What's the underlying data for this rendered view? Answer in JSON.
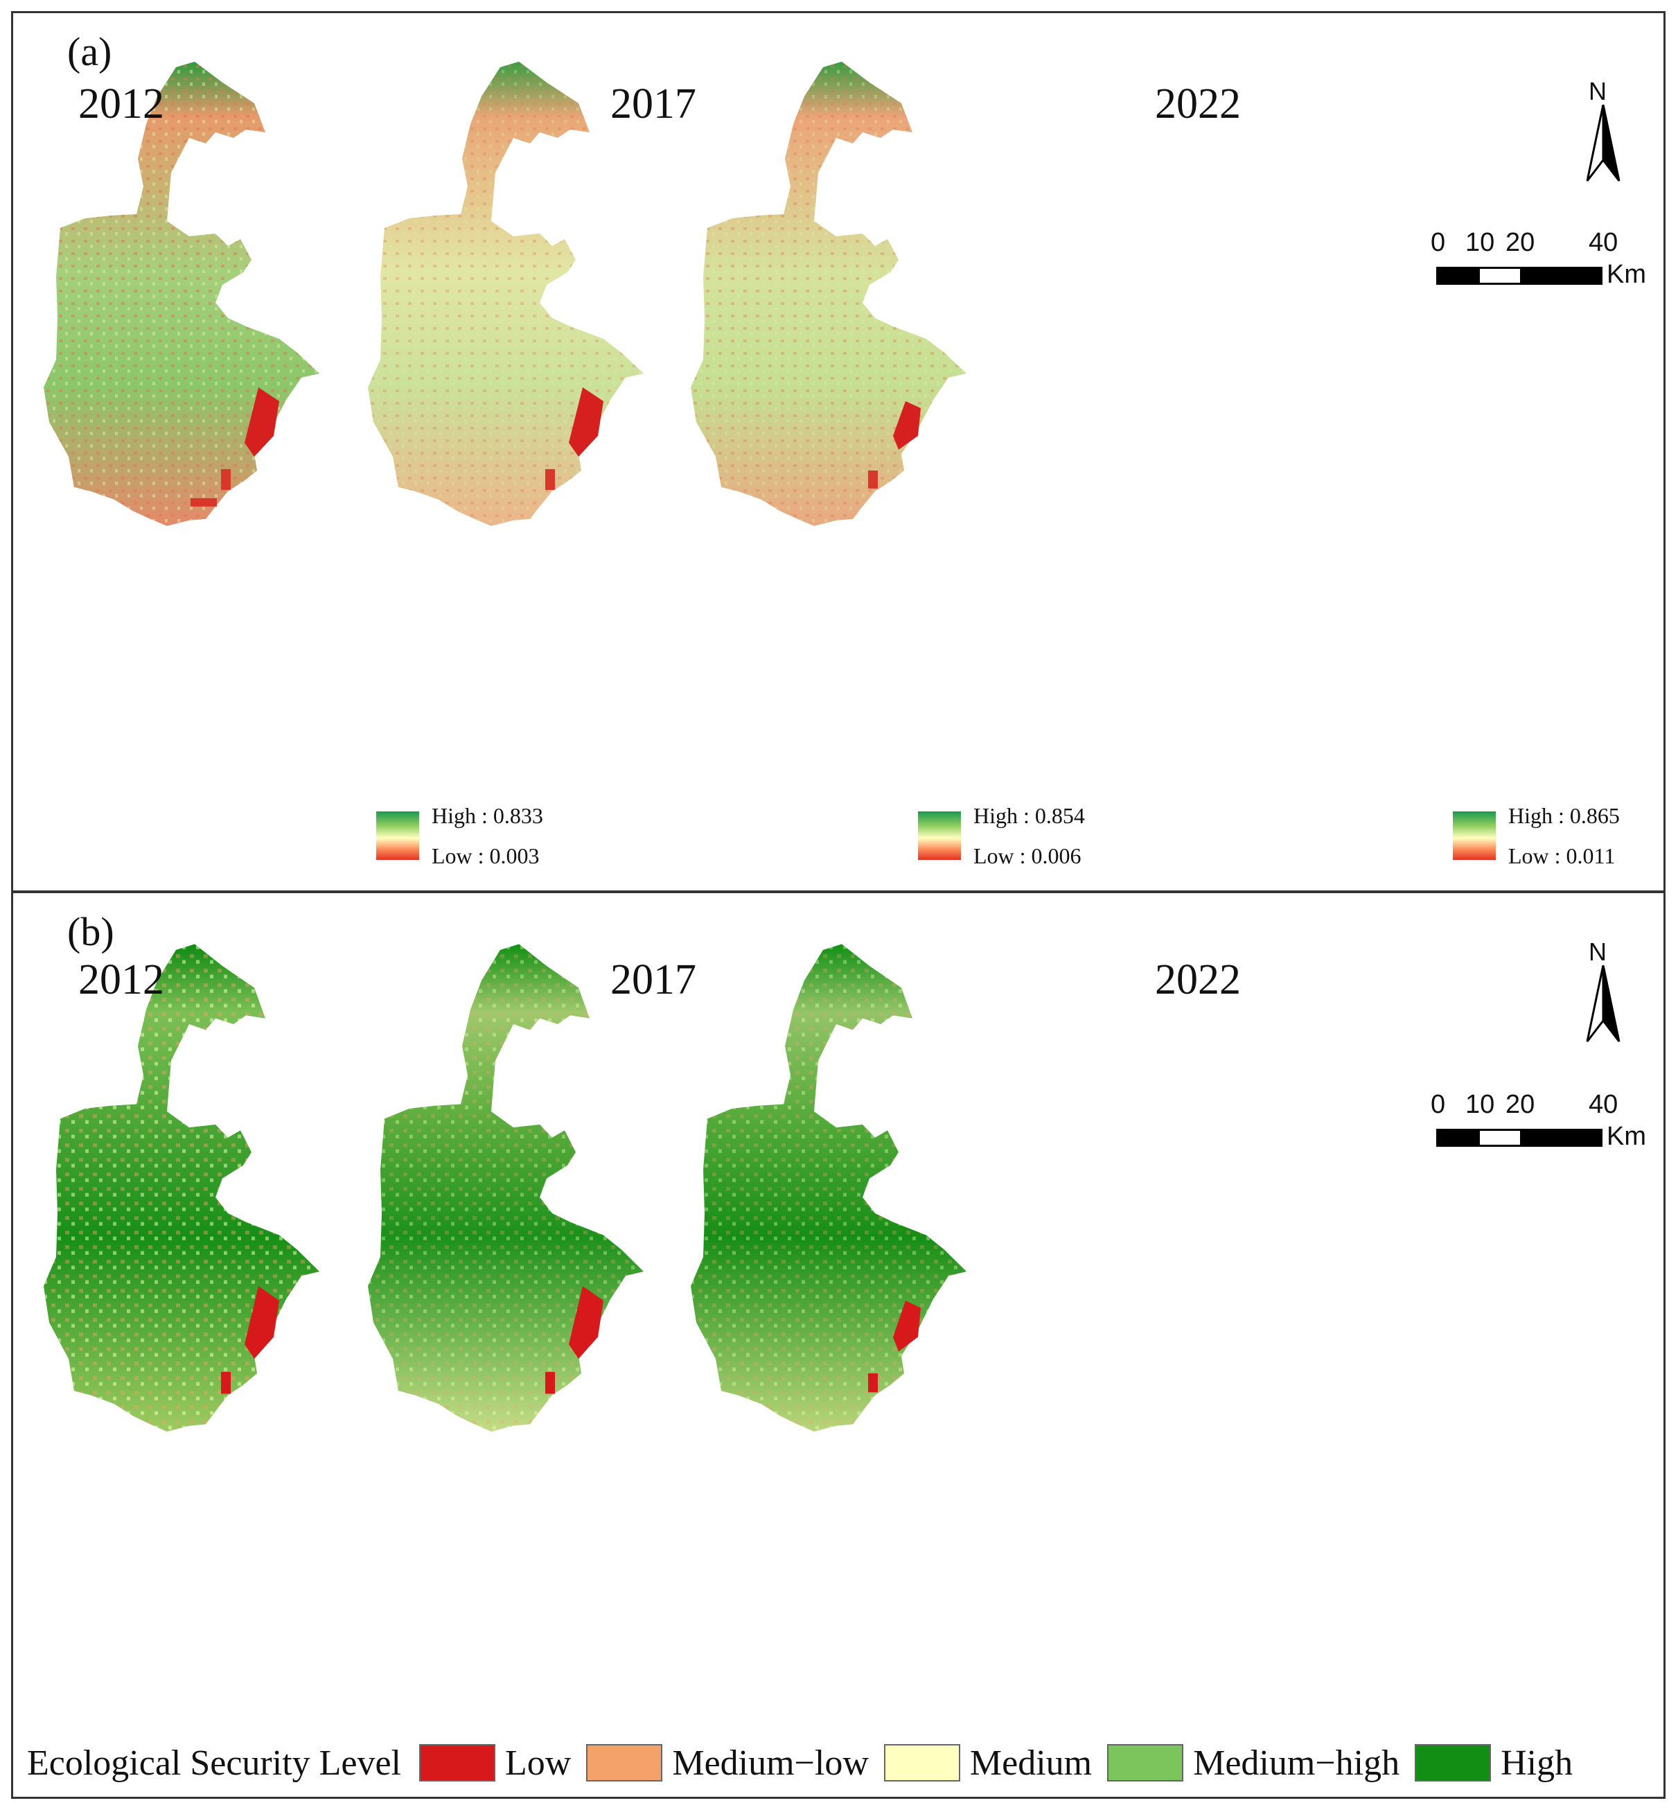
{
  "panel_a": {
    "label": "(a)",
    "years": [
      "2012",
      "2017",
      "2022"
    ],
    "legends": [
      {
        "high": "High : 0.833",
        "low": "Low  : 0.003"
      },
      {
        "high": "High : 0.854",
        "low": "Low  : 0.006"
      },
      {
        "high": "High : 0.865",
        "low": "Low  : 0.011"
      }
    ],
    "gradient_colors": [
      "#1a9850",
      "#91cf60",
      "#ffffbf",
      "#fc8d59",
      "#e53222"
    ]
  },
  "panel_b": {
    "label": "(b)",
    "years": [
      "2012",
      "2017",
      "2022"
    ],
    "legend_title": "Ecological Security Level",
    "classes": [
      {
        "label": "Low",
        "color": "#d7191c"
      },
      {
        "label": "Medium−low",
        "color": "#f4a16a"
      },
      {
        "label": "Medium",
        "color": "#ffffc0"
      },
      {
        "label": "Medium−high",
        "color": "#7cc45c"
      },
      {
        "label": "High",
        "color": "#128e14"
      }
    ]
  },
  "north_arrow": {
    "label": "N"
  },
  "scale_bar": {
    "ticks": [
      "0",
      "10",
      "20",
      "40"
    ],
    "unit": "Km"
  }
}
